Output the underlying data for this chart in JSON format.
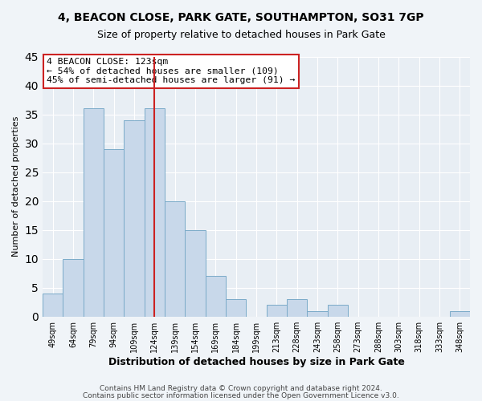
{
  "title": "4, BEACON CLOSE, PARK GATE, SOUTHAMPTON, SO31 7GP",
  "subtitle": "Size of property relative to detached houses in Park Gate",
  "xlabel": "Distribution of detached houses by size in Park Gate",
  "ylabel": "Number of detached properties",
  "bar_color": "#c8d8ea",
  "bar_edge_color": "#7aaac8",
  "vline_color": "#cc2222",
  "vline_x_index": 5,
  "annotation_title": "4 BEACON CLOSE: 123sqm",
  "annotation_line1": "← 54% of detached houses are smaller (109)",
  "annotation_line2": "45% of semi-detached houses are larger (91) →",
  "annotation_box_color": "#ffffff",
  "annotation_box_edge": "#cc2222",
  "categories": [
    "49sqm",
    "64sqm",
    "79sqm",
    "94sqm",
    "109sqm",
    "124sqm",
    "139sqm",
    "154sqm",
    "169sqm",
    "184sqm",
    "199sqm",
    "213sqm",
    "228sqm",
    "243sqm",
    "258sqm",
    "273sqm",
    "288sqm",
    "303sqm",
    "318sqm",
    "333sqm",
    "348sqm"
  ],
  "values": [
    4,
    10,
    36,
    29,
    34,
    36,
    20,
    15,
    7,
    3,
    0,
    2,
    3,
    1,
    2,
    0,
    0,
    0,
    0,
    0,
    1
  ],
  "ylim": [
    0,
    45
  ],
  "yticks": [
    0,
    5,
    10,
    15,
    20,
    25,
    30,
    35,
    40,
    45
  ],
  "footer1": "Contains HM Land Registry data © Crown copyright and database right 2024.",
  "footer2": "Contains public sector information licensed under the Open Government Licence v3.0.",
  "background_color": "#f0f4f8",
  "plot_bg_color": "#e8eef4",
  "grid_color": "#ffffff",
  "title_fontsize": 10,
  "subtitle_fontsize": 9,
  "footer_fontsize": 6.5,
  "tick_label_fontsize": 7,
  "ylabel_fontsize": 8,
  "xlabel_fontsize": 9
}
